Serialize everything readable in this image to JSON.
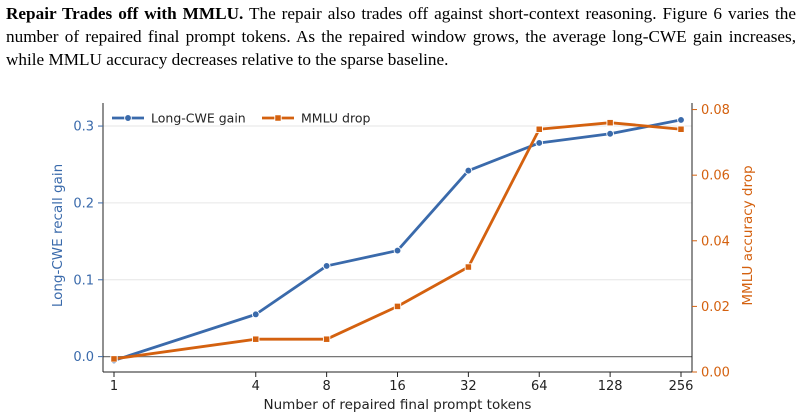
{
  "paragraph": {
    "heading": "Repair Trades off with MMLU.",
    "body": "The repair also trades off against short-context reasoning. Figure 6 varies the number of repaired final prompt tokens. As the repaired window grows, the average long-CWE gain increases, while MMLU accuracy decreases relative to the sparse baseline."
  },
  "chart_data": {
    "type": "line",
    "x_scale": "log2",
    "categories": [
      "1",
      "4",
      "8",
      "16",
      "32",
      "64",
      "128",
      "256"
    ],
    "x": [
      1,
      4,
      8,
      16,
      32,
      64,
      128,
      256
    ],
    "xlabel": "Number of repaired final prompt tokens",
    "ylabel_left": "Long-CWE recall gain",
    "ylabel_right": "MMLU accuracy drop",
    "ylim_left": [
      -0.02,
      0.33
    ],
    "yticks_left": [
      "0.0",
      "0.1",
      "0.2",
      "0.3"
    ],
    "ylim_right": [
      0.0,
      0.082
    ],
    "yticks_right": [
      "0.00",
      "0.02",
      "0.04",
      "0.06",
      "0.08"
    ],
    "grid": true,
    "zero_line": true,
    "legend_position": "upper-left",
    "series": [
      {
        "name": "Long-CWE gain",
        "axis": "left",
        "color": "#3a6aab",
        "marker": "circle",
        "values": [
          -0.005,
          0.055,
          0.118,
          0.138,
          0.242,
          0.278,
          0.29,
          0.308
        ]
      },
      {
        "name": "MMLU drop",
        "axis": "right",
        "color": "#d4610f",
        "marker": "square",
        "values": [
          0.004,
          0.01,
          0.01,
          0.02,
          0.032,
          0.074,
          0.076,
          0.074
        ]
      }
    ]
  }
}
